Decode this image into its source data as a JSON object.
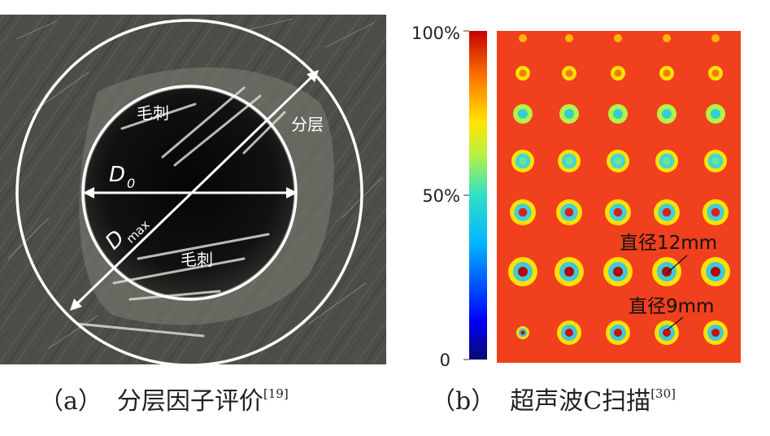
{
  "panel_a": {
    "labels": {
      "burr_top": "毛刺",
      "burr_bottom": "毛刺",
      "delamination": "分层",
      "d0": "D",
      "d0_sub": "0",
      "dmax": "D",
      "dmax_sub": "max"
    }
  },
  "panel_b": {
    "colorbar": {
      "top": "100%",
      "mid": "50%",
      "bottom": "0"
    },
    "annotations": {
      "d12": "直径12mm",
      "d9": "直径9mm"
    }
  },
  "captions": {
    "a_tag": "（a）",
    "a_text": "分层因子评价",
    "a_ref": "[19]",
    "b_tag": "（b）",
    "b_text": "超声波C扫描",
    "b_ref": "[30]"
  },
  "colors": {
    "scan_background": "#f0401e",
    "circle_lines": "#ffffff"
  }
}
